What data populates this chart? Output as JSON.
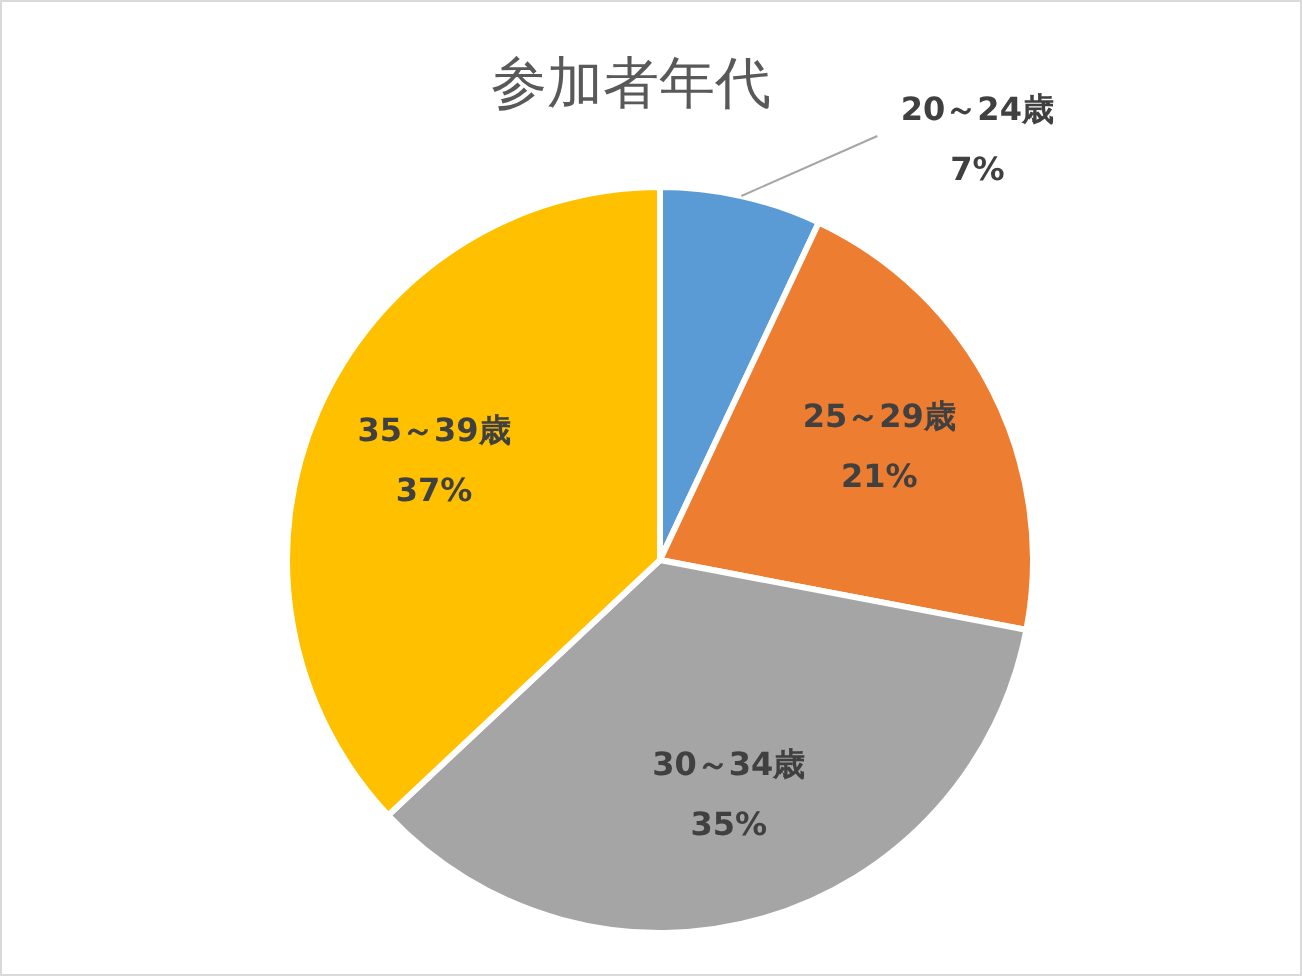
{
  "chart_data": {
    "type": "pie",
    "title": "参加者年代",
    "categories": [
      "20～24歳",
      "25～29歳",
      "30～34歳",
      "35～39歳"
    ],
    "values": [
      7,
      21,
      35,
      37
    ],
    "colors": [
      "#5b9bd5",
      "#ed7d31",
      "#a5a5a5",
      "#ffc000"
    ],
    "value_labels": [
      "7%",
      "21%",
      "35%",
      "37%"
    ],
    "legend": false
  }
}
